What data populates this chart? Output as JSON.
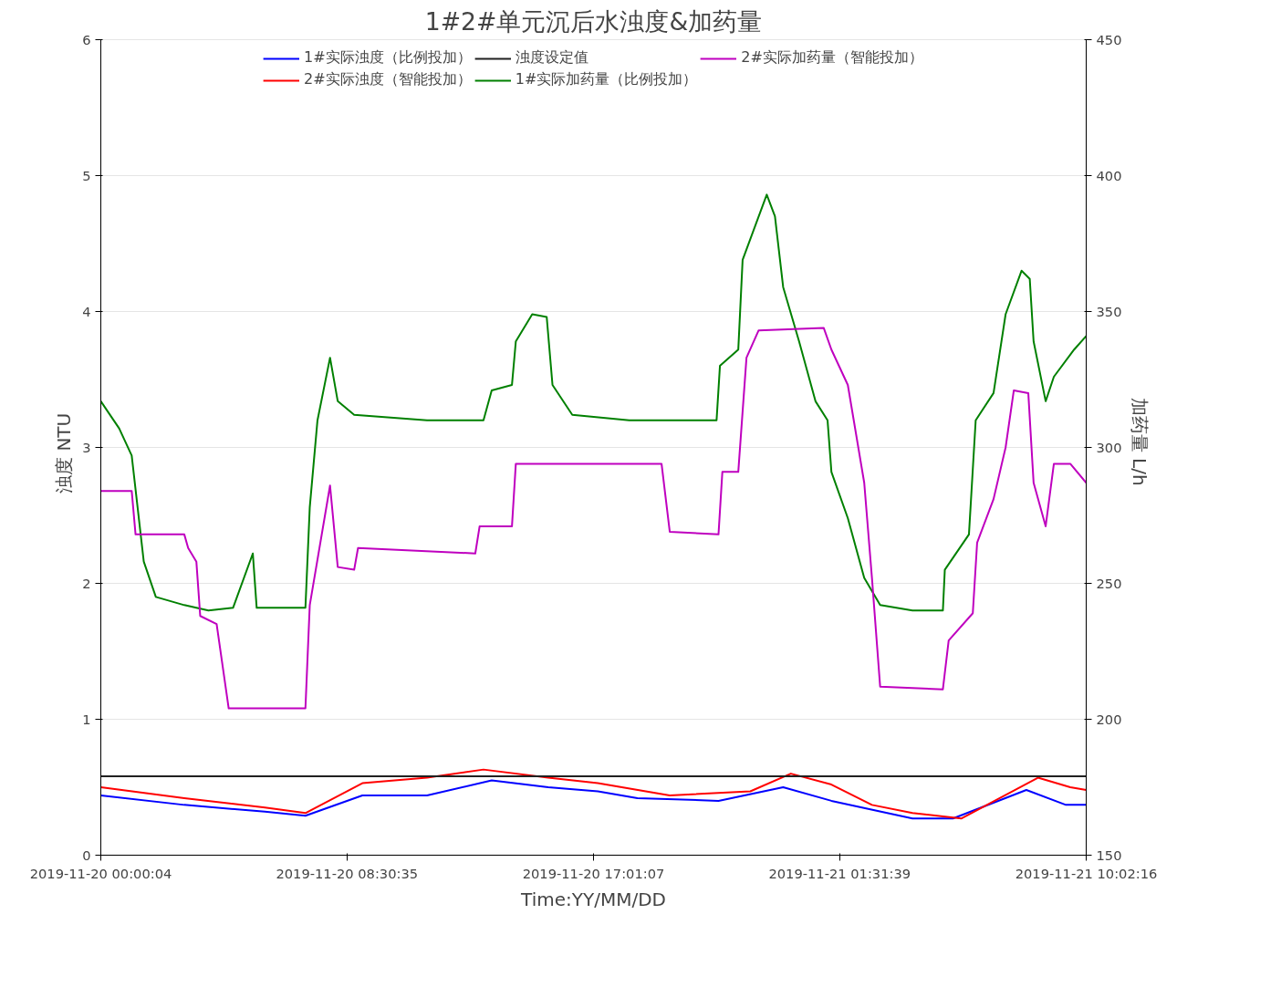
{
  "chart_data": {
    "type": "line",
    "title": "1#2#单元沉后水浊度&加药量",
    "xlabel": "Time:YY/MM/DD",
    "ylabel": "浊度   NTU",
    "y2label": "加药量   L/h",
    "xlim": [
      "2019-11-20T00:00",
      "2019-11-21T10:02"
    ],
    "xticks": [
      {
        "value": "2019-11-20T00:00",
        "label": "2019-11-20 00:00:04"
      },
      {
        "value": "2019-11-20T08:30",
        "label": "2019-11-20 08:30:35"
      },
      {
        "value": "2019-11-20T17:01",
        "label": "2019-11-20 17:01:07"
      },
      {
        "value": "2019-11-21T01:31",
        "label": "2019-11-21 01:31:39"
      },
      {
        "value": "2019-11-21T10:02",
        "label": "2019-11-21 10:02:16"
      }
    ],
    "ylim": [
      0,
      6
    ],
    "yticks": [
      0,
      1,
      2,
      3,
      4,
      5,
      6
    ],
    "y2lim": [
      150,
      450
    ],
    "y2ticks": [
      150,
      200,
      250,
      300,
      350,
      400,
      450
    ],
    "grid": "y",
    "legend": "top",
    "line_style": "solid",
    "marker": "none",
    "series": [
      {
        "name": "1#实际浊度（比例投加）",
        "color": "#0000ff",
        "x": [
          "2019-11-20T00:00",
          "2019-11-20T02:53",
          "2019-11-20T05:40",
          "2019-11-20T07:04",
          "2019-11-20T09:02",
          "2019-11-20T11:16",
          "2019-11-20T13:30",
          "2019-11-20T15:27",
          "2019-11-20T17:10",
          "2019-11-20T18:32",
          "2019-11-20T21:20",
          "2019-11-20T23:34",
          "2019-11-21T01:14",
          "2019-11-21T04:02",
          "2019-11-21T05:26",
          "2019-11-21T07:58",
          "2019-11-21T09:20",
          "2019-11-21T10:02"
        ],
        "values": [
          0.44,
          0.37,
          0.32,
          0.29,
          0.44,
          0.44,
          0.55,
          0.5,
          0.47,
          0.42,
          0.4,
          0.5,
          0.4,
          0.27,
          0.27,
          0.48,
          0.37,
          0.37
        ]
      },
      {
        "name": "2#实际浊度（智能投加）",
        "color": "#ff0000",
        "x": [
          "2019-11-20T00:00",
          "2019-11-20T02:53",
          "2019-11-20T05:40",
          "2019-11-20T07:04",
          "2019-11-20T09:02",
          "2019-11-20T11:16",
          "2019-11-20T13:13",
          "2019-11-20T15:27",
          "2019-11-20T17:10",
          "2019-11-20T19:39",
          "2019-11-20T22:26",
          "2019-11-20T23:50",
          "2019-11-21T01:14",
          "2019-11-21T02:38",
          "2019-11-21T04:02",
          "2019-11-21T05:43",
          "2019-11-21T08:22",
          "2019-11-21T09:29",
          "2019-11-21T10:02"
        ],
        "values": [
          0.5,
          0.42,
          0.35,
          0.31,
          0.53,
          0.57,
          0.63,
          0.57,
          0.53,
          0.44,
          0.47,
          0.6,
          0.52,
          0.37,
          0.31,
          0.27,
          0.57,
          0.5,
          0.48
        ]
      },
      {
        "name": "浊度设定值",
        "color": "#202020",
        "x": [
          "2019-11-20T00:00",
          "2019-11-21T10:02"
        ],
        "values": [
          0.58,
          0.58
        ]
      },
      {
        "name": "1#实际加药量（比例投加）",
        "color": "#008000",
        "axis": "y2",
        "x": [
          "2019-11-20T00:00",
          "2019-11-20T00:38",
          "2019-11-20T01:04",
          "2019-11-20T01:29",
          "2019-11-20T01:54",
          "2019-11-20T02:53",
          "2019-11-20T03:43",
          "2019-11-20T04:34",
          "2019-11-20T05:15",
          "2019-11-20T05:23",
          "2019-11-20T07:04",
          "2019-11-20T07:13",
          "2019-11-20T07:29",
          "2019-11-20T07:55",
          "2019-11-20T08:11",
          "2019-11-20T08:45",
          "2019-11-20T11:16",
          "2019-11-20T13:13",
          "2019-11-20T13:30",
          "2019-11-20T14:12",
          "2019-11-20T14:20",
          "2019-11-20T14:54",
          "2019-11-20T15:24",
          "2019-11-20T15:36",
          "2019-11-20T16:17",
          "2019-11-20T18:15",
          "2019-11-20T21:16",
          "2019-11-20T21:23",
          "2019-11-20T22:01",
          "2019-11-20T22:10",
          "2019-11-20T23:00",
          "2019-11-20T23:17",
          "2019-11-20T23:34",
          "2019-11-21T00:07",
          "2019-11-21T00:41",
          "2019-11-21T01:06",
          "2019-11-21T01:14",
          "2019-11-21T01:48",
          "2019-11-21T02:22",
          "2019-11-21T02:55",
          "2019-11-21T04:02",
          "2019-11-21T05:05",
          "2019-11-21T05:09",
          "2019-11-21T05:59",
          "2019-11-21T06:13",
          "2019-11-21T06:50",
          "2019-11-21T07:15",
          "2019-11-21T07:48",
          "2019-11-21T08:05",
          "2019-11-21T08:13",
          "2019-11-21T08:38",
          "2019-11-21T08:55",
          "2019-11-21T09:37",
          "2019-11-21T10:02"
        ],
        "values": [
          317,
          307,
          297,
          258,
          245,
          242,
          240,
          241,
          261,
          241,
          241,
          278,
          310,
          333,
          317,
          312,
          310,
          310,
          321,
          323,
          339,
          349,
          348,
          323,
          312,
          310,
          310,
          330,
          336,
          369,
          393,
          385,
          359,
          339,
          317,
          310,
          291,
          274,
          252,
          242,
          240,
          240,
          255,
          268,
          310,
          320,
          349,
          365,
          362,
          339,
          317,
          326,
          336,
          341
        ]
      },
      {
        "name": "2#实际加药量（智能投加）",
        "color": "#bf00bf",
        "axis": "y2",
        "x": [
          "2019-11-20T00:00",
          "2019-11-20T01:04",
          "2019-11-20T01:12",
          "2019-11-20T02:53",
          "2019-11-20T03:01",
          "2019-11-20T03:18",
          "2019-11-20T03:26",
          "2019-11-20T04:00",
          "2019-11-20T04:25",
          "2019-11-20T07:04",
          "2019-11-20T07:13",
          "2019-11-20T07:55",
          "2019-11-20T08:11",
          "2019-11-20T08:45",
          "2019-11-20T08:53",
          "2019-11-20T12:56",
          "2019-11-20T13:05",
          "2019-11-20T14:12",
          "2019-11-20T14:20",
          "2019-11-20T16:51",
          "2019-11-20T19:22",
          "2019-11-20T19:39",
          "2019-11-20T21:20",
          "2019-11-20T21:28",
          "2019-11-20T22:01",
          "2019-11-20T22:18",
          "2019-11-20T22:43",
          "2019-11-21T00:58",
          "2019-11-21T01:14",
          "2019-11-21T01:48",
          "2019-11-21T02:22",
          "2019-11-21T02:38",
          "2019-11-21T02:55",
          "2019-11-21T05:05",
          "2019-11-21T05:17",
          "2019-11-21T06:07",
          "2019-11-21T06:16",
          "2019-11-21T06:50",
          "2019-11-21T07:15",
          "2019-11-21T07:32",
          "2019-11-21T08:02",
          "2019-11-21T08:13",
          "2019-11-21T08:38",
          "2019-11-21T08:55",
          "2019-11-21T09:29",
          "2019-11-21T10:02"
        ],
        "values": [
          284,
          284,
          268,
          268,
          263,
          258,
          238,
          235,
          204,
          204,
          242,
          286,
          256,
          255,
          263,
          261,
          271,
          271,
          294,
          294,
          294,
          269,
          268,
          291,
          291,
          333,
          343,
          344,
          336,
          323,
          287,
          252,
          212,
          211,
          229,
          239,
          265,
          281,
          300,
          321,
          320,
          287,
          271,
          294,
          294,
          287
        ]
      }
    ]
  }
}
